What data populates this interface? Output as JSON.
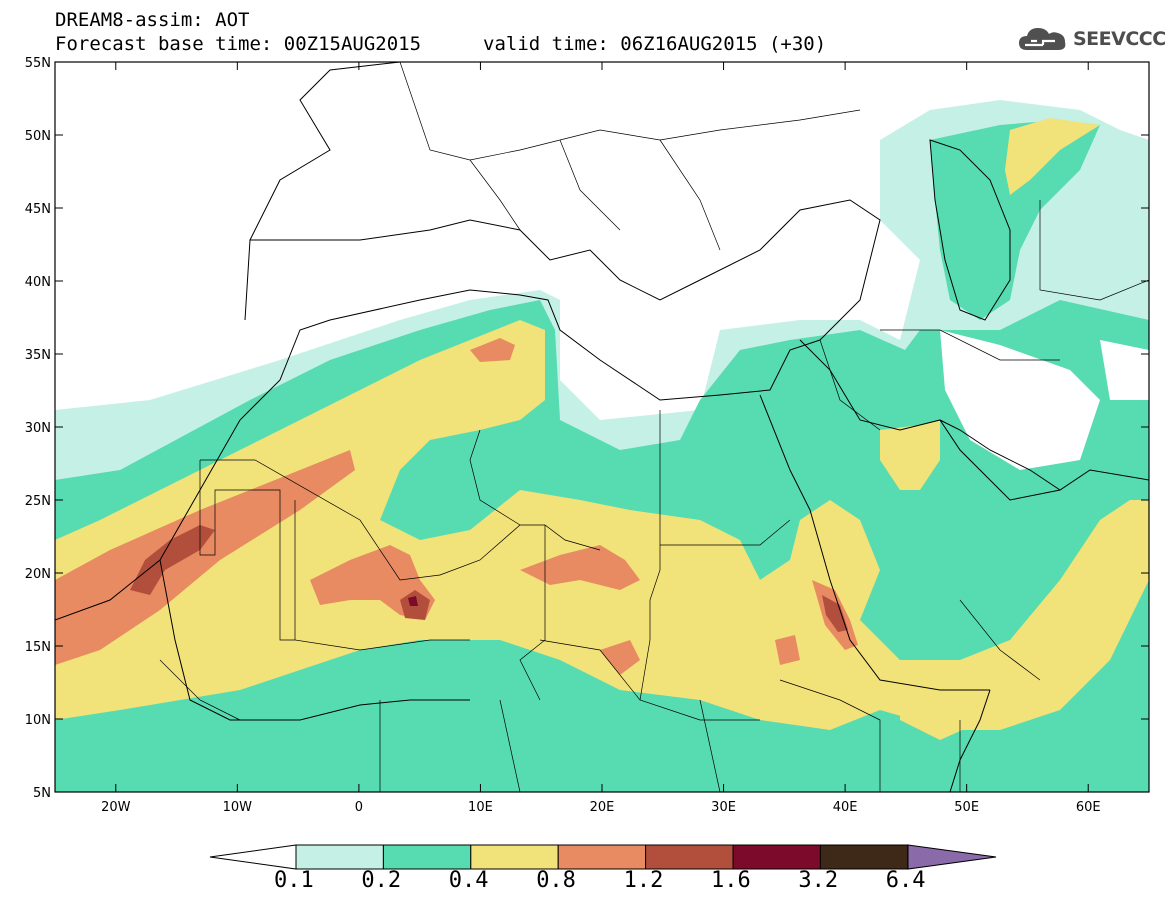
{
  "header": {
    "line1": "DREAM8-assim: AOT",
    "line2": "Forecast base time: 00Z15AUG2015",
    "valid": "valid time: 06Z16AUG2015 (+30)"
  },
  "logo": {
    "text": "SEEVCCC",
    "icon": "cloud-icon"
  },
  "map": {
    "lon_range": [
      -25,
      65
    ],
    "lat_range": [
      5,
      55
    ],
    "lon_ticks": [
      "20W",
      "10W",
      "0",
      "10E",
      "20E",
      "30E",
      "40E",
      "50E",
      "60E"
    ],
    "lat_ticks": [
      "55N",
      "50N",
      "45N",
      "40N",
      "35N",
      "30N",
      "25N",
      "20N",
      "15N",
      "10N",
      "5N"
    ],
    "lon_tick_values": [
      -20,
      -10,
      0,
      10,
      20,
      30,
      40,
      50,
      60
    ],
    "lat_tick_values": [
      55,
      50,
      45,
      40,
      35,
      30,
      25,
      20,
      15,
      10,
      5
    ]
  },
  "colorbar": {
    "labels": [
      "0.1",
      "0.2",
      "0.4",
      "0.8",
      "1.2",
      "1.6",
      "3.2",
      "6.4"
    ],
    "colors": [
      "#c4f0e6",
      "#57dbb0",
      "#f2e27a",
      "#e88a62",
      "#b24f3c",
      "#7c0a2a",
      "#3e2817"
    ],
    "under_color": "#ffffff",
    "over_color": "#8a6aa8"
  }
}
